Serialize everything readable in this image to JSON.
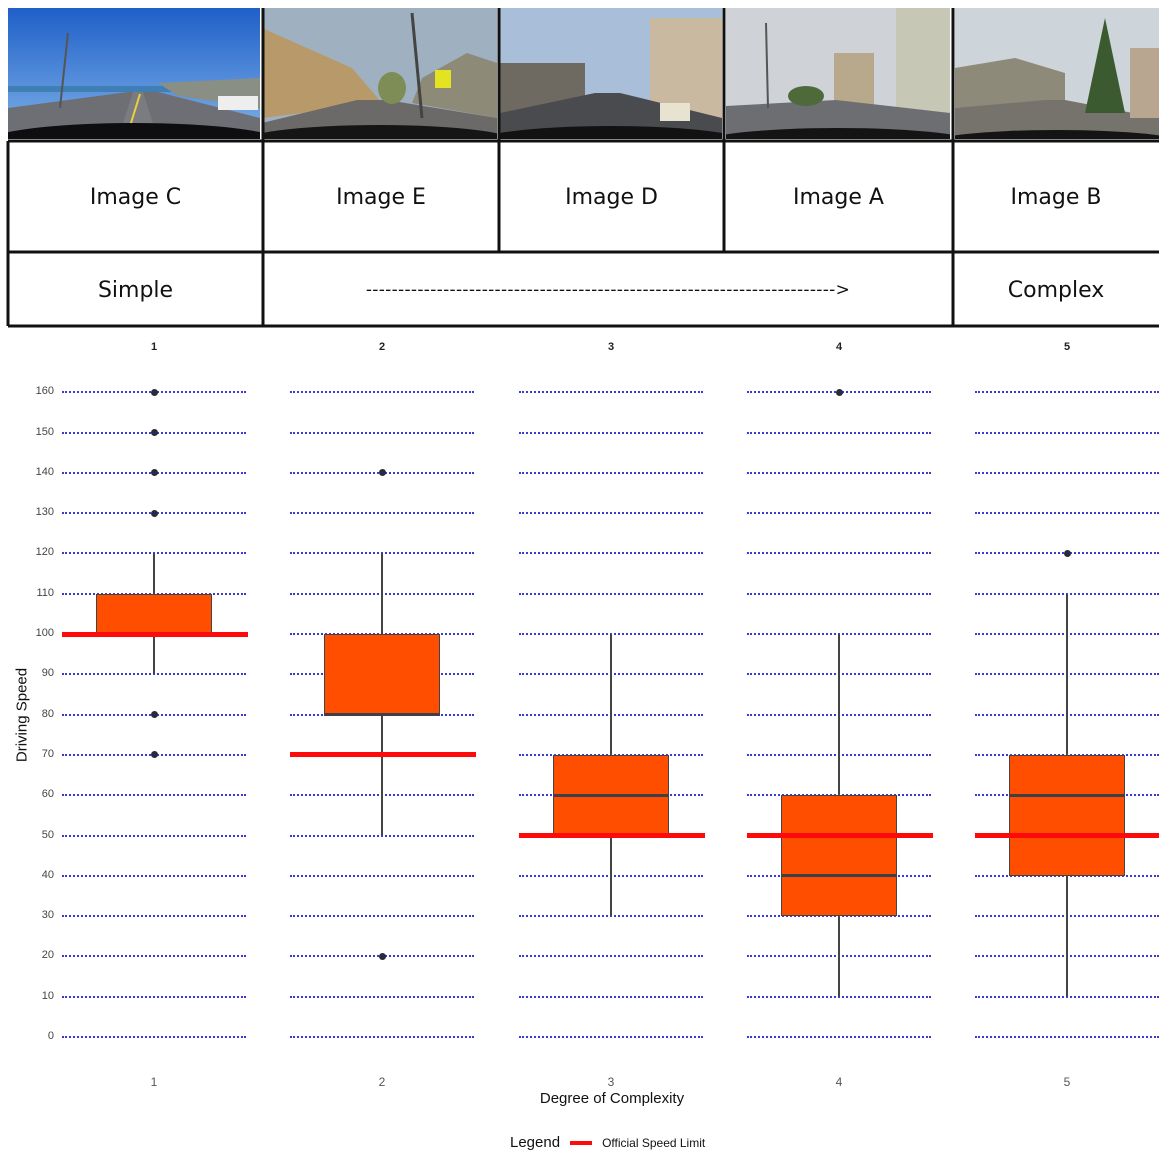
{
  "images": [
    {
      "icon": "coastal-highway-photo",
      "label": "Image C"
    },
    {
      "icon": "mountain-road-photo",
      "label": "Image E"
    },
    {
      "icon": "town-street-photo",
      "label": "Image D"
    },
    {
      "icon": "urban-intersection-photo",
      "label": "Image A"
    },
    {
      "icon": "village-street-photo",
      "label": "Image B"
    }
  ],
  "scale": {
    "left_label": "Simple",
    "arrow": "------------------------------------------------------------------------->",
    "right_label": "Complex"
  },
  "colors": {
    "box_fill": "#ff4e00",
    "speed_limit": "#ff0a0a",
    "gridline": "#3a3ad8",
    "outlier": "#2a2a3a"
  },
  "chart_data": {
    "type": "box",
    "facets": [
      "1",
      "2",
      "3",
      "4",
      "5"
    ],
    "ylabel": "Driving Speed",
    "xlabel": "Degree of Complexity",
    "ylim": [
      0,
      160
    ],
    "yticks": [
      0,
      10,
      20,
      30,
      40,
      50,
      60,
      70,
      80,
      90,
      100,
      110,
      120,
      130,
      140,
      150,
      160
    ],
    "grid": "horizontal dotted",
    "legend": {
      "title": "Legend",
      "entries": [
        "Official Speed Limit"
      ],
      "position": "bottom"
    },
    "boxes": [
      {
        "x": "1",
        "whisker_low": 90,
        "q1": 100,
        "median": 100,
        "q3": 110,
        "whisker_high": 120,
        "outliers": [
          70,
          80,
          130,
          140,
          150,
          160
        ],
        "speed_limit": 100
      },
      {
        "x": "2",
        "whisker_low": 50,
        "q1": 80,
        "median": 80,
        "q3": 100,
        "whisker_high": 120,
        "outliers": [
          20,
          140
        ],
        "speed_limit": 70
      },
      {
        "x": "3",
        "whisker_low": 30,
        "q1": 50,
        "median": 60,
        "q3": 70,
        "whisker_high": 100,
        "outliers": [],
        "speed_limit": 50
      },
      {
        "x": "4",
        "whisker_low": 10,
        "q1": 30,
        "median": 40,
        "q3": 60,
        "whisker_high": 100,
        "outliers": [
          160
        ],
        "speed_limit": 50
      },
      {
        "x": "5",
        "whisker_low": 10,
        "q1": 40,
        "median": 60,
        "q3": 70,
        "whisker_high": 110,
        "outliers": [
          120
        ],
        "speed_limit": 50
      }
    ]
  }
}
